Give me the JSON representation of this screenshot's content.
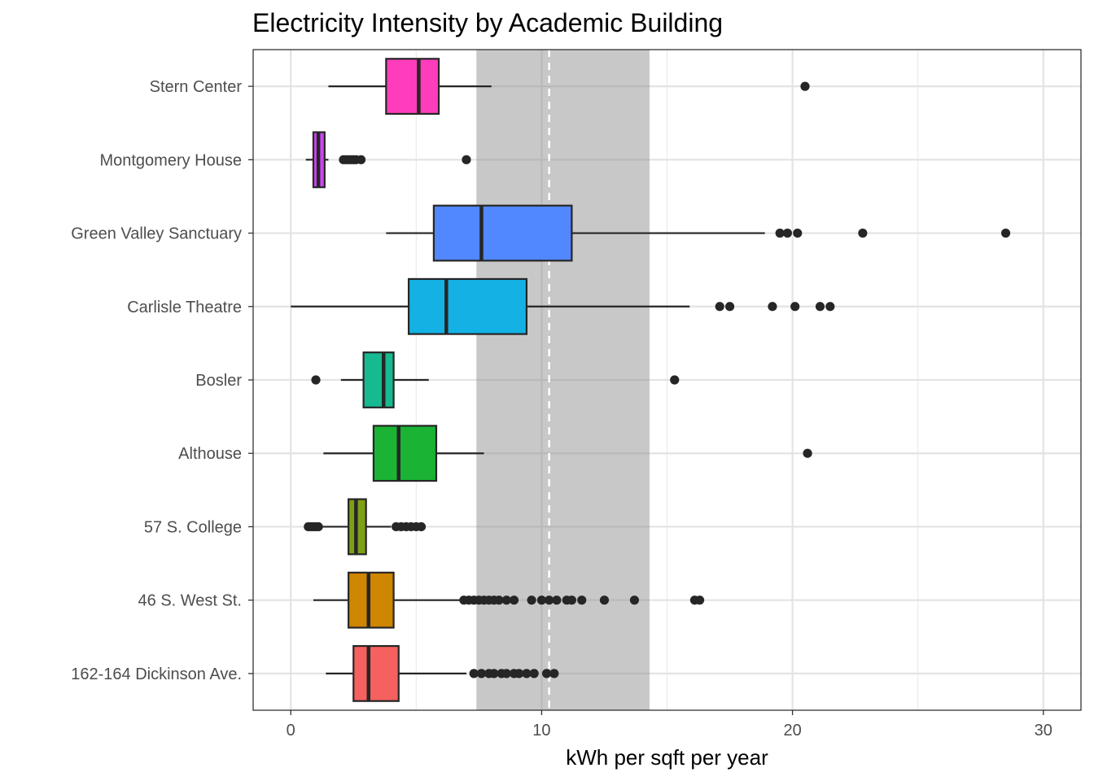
{
  "chart_data": {
    "type": "boxplot",
    "orientation": "horizontal",
    "title": "Electricity Intensity by Academic Building",
    "xlabel": "kWh per sqft per year",
    "ylabel": "",
    "xlim": [
      -1.5,
      31.5
    ],
    "x_ticks": [
      0,
      10,
      20,
      30
    ],
    "grid": true,
    "reference_band": {
      "from": 7.4,
      "to": 14.3,
      "color": "#c8c8c8"
    },
    "reference_line": {
      "value": 10.3,
      "style": "dashed",
      "color": "#ffffff"
    },
    "categories": [
      "Stern Center",
      "Montgomery House",
      "Green Valley Sanctuary",
      "Carlisle Theatre",
      "Bosler",
      "Althouse",
      "57 S. College",
      "46 S. West St.",
      "162-164 Dickinson Ave."
    ],
    "boxes": [
      {
        "name": "Stern Center",
        "color": "#ff3dbc",
        "whisker_low": 1.5,
        "q1": 3.8,
        "median": 5.1,
        "q3": 5.9,
        "whisker_high": 8.0,
        "outliers": [
          20.5
        ]
      },
      {
        "name": "Montgomery House",
        "color": "#cb45f0",
        "whisker_low": 0.6,
        "q1": 0.9,
        "median": 1.1,
        "q3": 1.35,
        "whisker_high": 1.5,
        "outliers": [
          2.1,
          2.2,
          2.3,
          2.4,
          2.5,
          2.6,
          2.8,
          7.0
        ]
      },
      {
        "name": "Green Valley Sanctuary",
        "color": "#5187ff",
        "whisker_low": 3.8,
        "q1": 5.7,
        "median": 7.6,
        "q3": 11.2,
        "whisker_high": 18.9,
        "outliers": [
          19.5,
          19.8,
          20.2,
          22.8,
          28.5
        ]
      },
      {
        "name": "Carlisle Theatre",
        "color": "#14b1e5",
        "whisker_low": 0.0,
        "q1": 4.7,
        "median": 6.2,
        "q3": 9.4,
        "whisker_high": 15.9,
        "outliers": [
          17.1,
          17.5,
          19.2,
          20.1,
          21.1,
          21.5
        ]
      },
      {
        "name": "Bosler",
        "color": "#17b991",
        "whisker_low": 2.0,
        "q1": 2.9,
        "median": 3.7,
        "q3": 4.1,
        "whisker_high": 5.5,
        "outliers": [
          1.0,
          15.3
        ]
      },
      {
        "name": "Althouse",
        "color": "#1ab334",
        "whisker_low": 1.3,
        "q1": 3.3,
        "median": 4.3,
        "q3": 5.8,
        "whisker_high": 7.7,
        "outliers": [
          20.6
        ]
      },
      {
        "name": "57 S. College",
        "color": "#7ea014",
        "whisker_low": 1.1,
        "q1": 2.3,
        "median": 2.6,
        "q3": 3.0,
        "whisker_high": 4.0,
        "outliers": [
          0.7,
          0.8,
          0.9,
          1.0,
          1.1,
          4.2,
          4.4,
          4.6,
          4.8,
          5.0,
          5.2
        ]
      },
      {
        "name": "46 S. West St.",
        "color": "#cf8600",
        "whisker_low": 0.9,
        "q1": 2.3,
        "median": 3.1,
        "q3": 4.1,
        "whisker_high": 6.8,
        "outliers": [
          6.9,
          7.1,
          7.3,
          7.5,
          7.7,
          7.9,
          8.1,
          8.3,
          8.6,
          8.9,
          9.6,
          10.0,
          10.3,
          10.6,
          11.0,
          11.2,
          11.6,
          12.5,
          13.7,
          16.1,
          16.3
        ]
      },
      {
        "name": "162-164 Dickinson Ave.",
        "color": "#f5615e",
        "whisker_low": 1.4,
        "q1": 2.5,
        "median": 3.1,
        "q3": 4.3,
        "whisker_high": 7.0,
        "outliers": [
          7.3,
          7.6,
          7.9,
          8.1,
          8.4,
          8.6,
          8.9,
          9.1,
          9.4,
          9.7,
          10.2,
          10.5
        ]
      }
    ]
  }
}
